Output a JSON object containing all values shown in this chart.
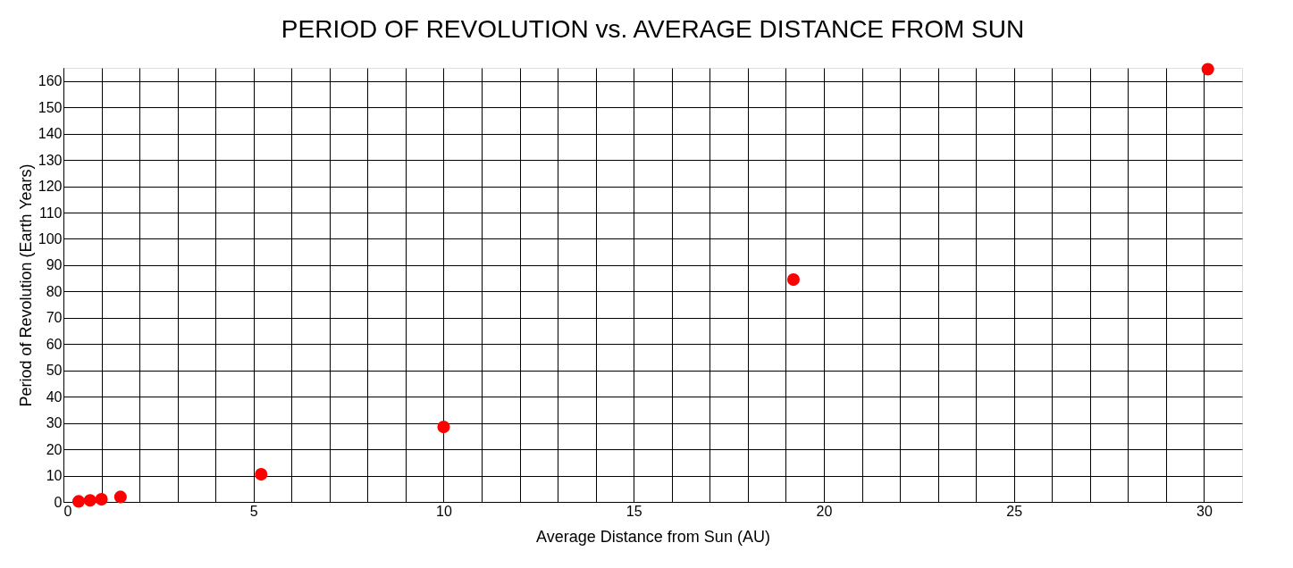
{
  "chart_data": {
    "type": "scatter",
    "title": "PERIOD OF REVOLUTION vs. AVERAGE DISTANCE FROM SUN",
    "xlabel": "Average Distance from Sun (AU)",
    "ylabel": "Period of Revolution (Earth Years)",
    "x": [
      0.4,
      0.7,
      1,
      1.5,
      5.2,
      10,
      19.2,
      30.1
    ],
    "series": [
      {
        "color": "#ff0000",
        "values": [
          0.2,
          0.6,
          1,
          1.9,
          10.5,
          28.5,
          84.5,
          164.5
        ]
      }
    ],
    "xlim": [
      0,
      31
    ],
    "xticks": [
      0,
      {
        "value": 1,
        "label": null
      },
      {
        "value": 2,
        "label": null
      },
      {
        "value": 3,
        "label": null
      },
      {
        "value": 4,
        "label": null
      },
      5,
      {
        "value": 6,
        "label": null
      },
      {
        "value": 7,
        "label": null
      },
      {
        "value": 8,
        "label": null
      },
      {
        "value": 9,
        "label": null
      },
      10,
      {
        "value": 11,
        "label": null
      },
      {
        "value": 12,
        "label": null
      },
      {
        "value": 13,
        "label": null
      },
      {
        "value": 14,
        "label": null
      },
      15,
      {
        "value": 16,
        "label": null
      },
      {
        "value": 17,
        "label": null
      },
      {
        "value": 18,
        "label": null
      },
      {
        "value": 19,
        "label": null
      },
      20,
      {
        "value": 21,
        "label": null
      },
      {
        "value": 22,
        "label": null
      },
      {
        "value": 23,
        "label": null
      },
      {
        "value": 24,
        "label": null
      },
      25,
      {
        "value": 26,
        "label": null
      },
      {
        "value": 27,
        "label": null
      },
      {
        "value": 28,
        "label": null
      },
      {
        "value": 29,
        "label": null
      },
      30
    ],
    "ylim": [
      0,
      165
    ],
    "yticks": [
      0,
      10,
      20,
      30,
      40,
      50,
      60,
      70,
      80,
      90,
      100,
      110,
      120,
      130,
      140,
      150,
      160
    ],
    "grid": true,
    "marker": "circle"
  }
}
